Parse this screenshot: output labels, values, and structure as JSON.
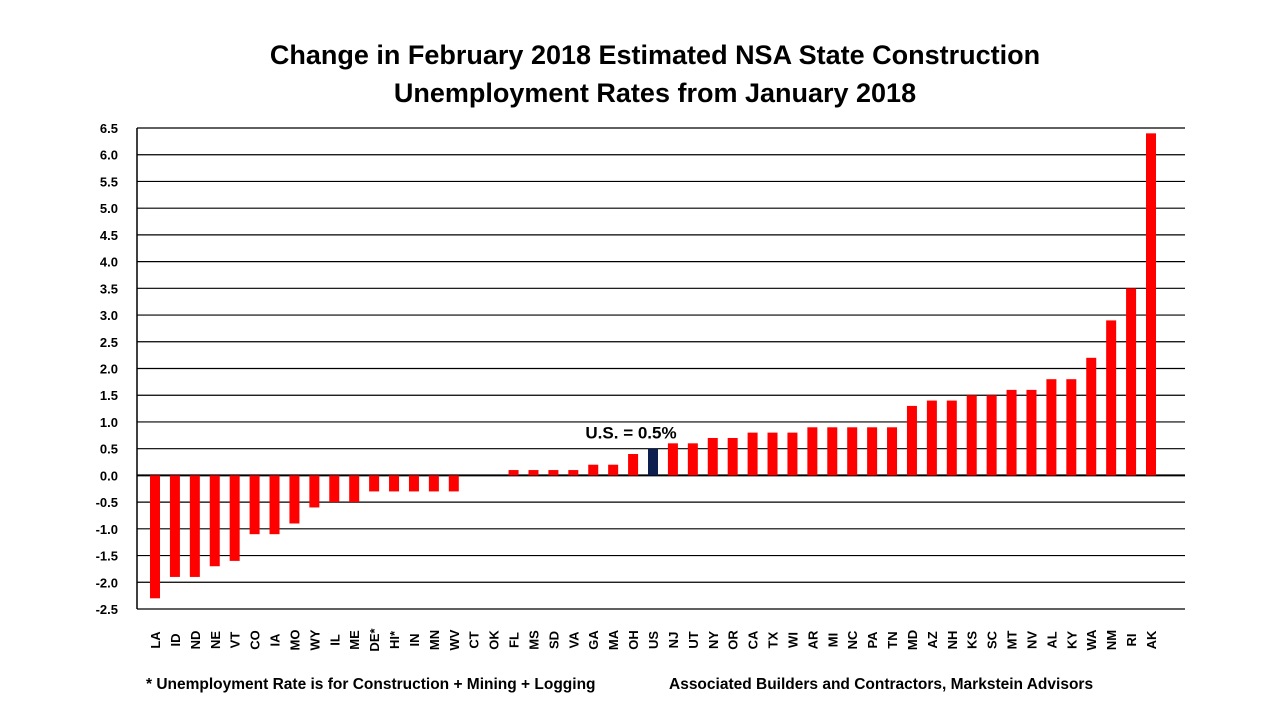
{
  "chart_data": {
    "type": "bar",
    "title": [
      "Change in February 2018 Estimated NSA State Construction",
      "Unemployment Rates from January 2018"
    ],
    "xlabel": "",
    "ylabel": "",
    "ylim": [
      -2.5,
      6.5
    ],
    "ytick_step": 0.5,
    "grid": true,
    "categories": [
      "LA",
      "ID",
      "ND",
      "NE",
      "VT",
      "CO",
      "IA",
      "MO",
      "WY",
      "IL",
      "ME",
      "DE*",
      "HI*",
      "IN",
      "MN",
      "WV",
      "CT",
      "OK",
      "FL",
      "MS",
      "SD",
      "VA",
      "GA",
      "MA",
      "OH",
      "US",
      "NJ",
      "UT",
      "NY",
      "OR",
      "CA",
      "TX",
      "WI",
      "AR",
      "MI",
      "NC",
      "PA",
      "TN",
      "MD",
      "AZ",
      "NH",
      "KS",
      "SC",
      "MT",
      "NV",
      "AL",
      "KY",
      "WA",
      "NM",
      "RI",
      "AK"
    ],
    "values": [
      -2.3,
      -1.9,
      -1.9,
      -1.7,
      -1.6,
      -1.1,
      -1.1,
      -0.9,
      -0.6,
      -0.5,
      -0.5,
      -0.3,
      -0.3,
      -0.3,
      -0.3,
      -0.3,
      0,
      0,
      0.1,
      0.1,
      0.1,
      0.1,
      0.2,
      0.2,
      0.4,
      0.5,
      0.6,
      0.6,
      0.7,
      0.7,
      0.8,
      0.8,
      0.8,
      0.9,
      0.9,
      0.9,
      0.9,
      0.9,
      1.3,
      1.4,
      1.4,
      1.5,
      1.5,
      1.6,
      1.6,
      1.8,
      1.8,
      2.2,
      2.9,
      3.5,
      6.4
    ],
    "highlight_category": "US",
    "annotation": "U.S. = 0.5%",
    "colors": {
      "bar": "#ff0000",
      "highlight": "#0c1f4f"
    }
  },
  "footnote": "* Unemployment Rate is for Construction + Mining + Logging",
  "source": "Associated Builders and Contractors, Markstein Advisors"
}
